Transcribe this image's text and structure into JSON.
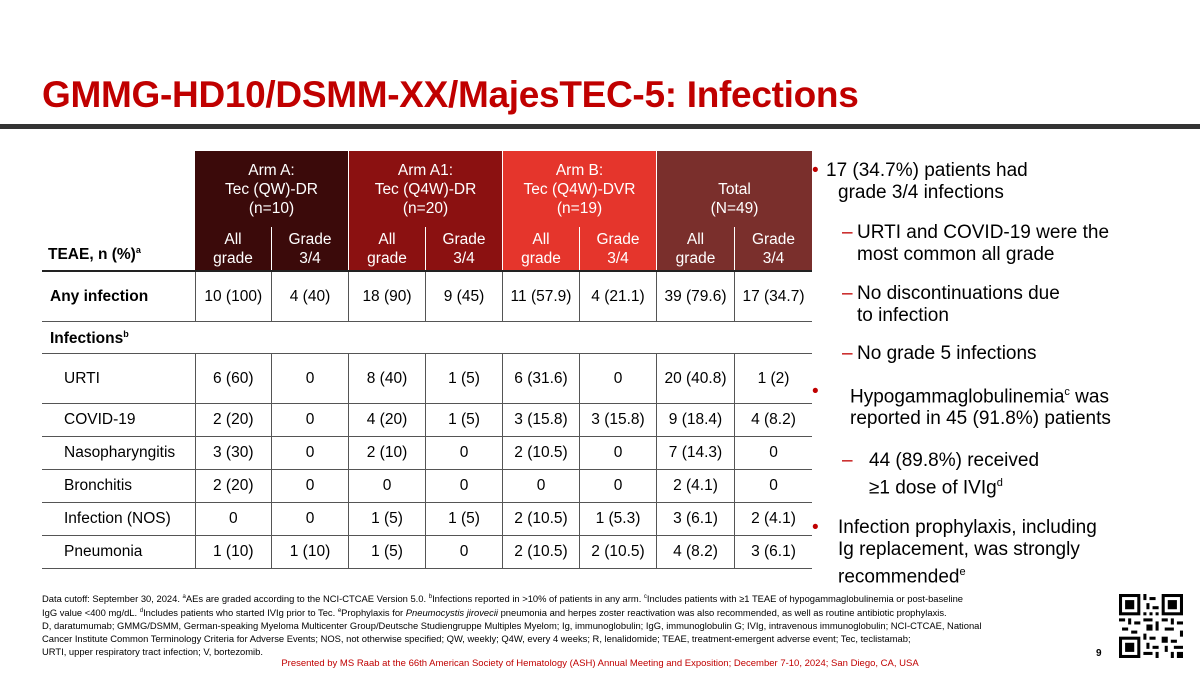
{
  "title": "GMMG-HD10/DSMM-XX/MajesTEC-5: Infections",
  "table": {
    "arms": [
      {
        "lines": [
          "Arm A:",
          "Tec (QW)-DR",
          "(n=10)"
        ]
      },
      {
        "lines": [
          "Arm A1:",
          "Tec (Q4W)-DR",
          "(n=20)"
        ]
      },
      {
        "lines": [
          "Arm B:",
          "Tec (Q4W)-DVR",
          "(n=19)"
        ]
      },
      {
        "lines": [
          "",
          "Total",
          "(N=49)"
        ]
      }
    ],
    "row_header": "TEAE, n (%)",
    "row_header_sup": "a",
    "subcols": [
      [
        "All",
        "grade"
      ],
      [
        "Grade",
        "3/4"
      ]
    ],
    "any_infection": {
      "label": "Any infection",
      "values": [
        "10 (100)",
        "4 (40)",
        "18 (90)",
        "9 (45)",
        "11 (57.9)",
        "4 (21.1)",
        "39 (79.6)",
        "17 (34.7)"
      ]
    },
    "infections_label": "Infections",
    "infections_sup": "b",
    "rows": [
      {
        "label": "URTI",
        "values": [
          "6 (60)",
          "0",
          "8 (40)",
          "1 (5)",
          "6 (31.6)",
          "0",
          "20 (40.8)",
          "1 (2)"
        ]
      },
      {
        "label": "COVID-19",
        "values": [
          "2 (20)",
          "0",
          "4 (20)",
          "1 (5)",
          "3 (15.8)",
          "3 (15.8)",
          "9 (18.4)",
          "4 (8.2)"
        ]
      },
      {
        "label": "Nasopharyngitis",
        "values": [
          "3 (30)",
          "0",
          "2 (10)",
          "0",
          "2 (10.5)",
          "0",
          "7 (14.3)",
          "0"
        ]
      },
      {
        "label": "Bronchitis",
        "values": [
          "2 (20)",
          "0",
          "0",
          "0",
          "0",
          "0",
          "2 (4.1)",
          "0"
        ]
      },
      {
        "label": "Infection (NOS)",
        "values": [
          "0",
          "0",
          "1 (5)",
          "1 (5)",
          "2 (10.5)",
          "1 (5.3)",
          "3 (6.1)",
          "2 (4.1)"
        ]
      },
      {
        "label": "Pneumonia",
        "values": [
          "1 (10)",
          "1 (10)",
          "1 (5)",
          "0",
          "2 (10.5)",
          "2 (10.5)",
          "4 (8.2)",
          "3 (6.1)"
        ]
      }
    ]
  },
  "bullets": {
    "b1": "17 (34.7%) patients had",
    "b1b": "grade 3/4 infections",
    "d1": "URTI and COVID-19 were the",
    "d1b": "most common all grade",
    "d2": "No discontinuations due",
    "d2b": "to infection",
    "d3": "No grade 5 infections",
    "b2": "Hypogammaglobulinemia",
    "b2sup": "c",
    "b2rest": " was",
    "b2b": "reported in 45 (91.8%) patients",
    "d4": "44 (89.8%) received",
    "d4b": "≥1 dose of IVIg",
    "d4sup": "d",
    "b3": "Infection prophylaxis, including",
    "b3b": "Ig replacement, was strongly",
    "b3c": "recommended",
    "b3sup": "e"
  },
  "footnotes": {
    "l1a": "Data cutoff: September 30, 2024. ",
    "l1b": "AEs are graded according to the NCI-CTCAE Version 5.0. ",
    "l1c": "Infections reported in >10% of patients in any arm. ",
    "l1d": "Includes patients with ≥1 TEAE of hypogammaglobulinemia or post-baseline",
    "l2a": "IgG value <400 mg/dL. ",
    "l2b": "Includes patients who started IVIg prior to Tec. ",
    "l2c": "Prophylaxis for ",
    "l2d": "Pneumocystis jirovecii",
    "l2e": " pneumonia and herpes zoster reactivation was also recommended, as well as routine antibiotic prophylaxis.",
    "l3": "D, daratumumab; GMMG/DSMM, German-speaking Myeloma Multicenter Group/Deutsche Studiengruppe Multiples Myelom; Ig, immunoglobulin; IgG, immunoglobulin G; IVIg, intravenous immunoglobulin; NCI-CTCAE, National",
    "l4": "Cancer Institute Common Terminology Criteria for Adverse Events; NOS, not otherwise specified; QW, weekly; Q4W, every 4 weeks; R, lenalidomide; TEAE, treatment-emergent adverse event; Tec, teclistamab;",
    "l5": "URTI, upper respiratory tract infection; V, bortezomib."
  },
  "presented_by": "Presented by MS Raab at the 66th American Society of Hematology (ASH) Annual Meeting and Exposition; December 7-10, 2024; San Diego, CA, USA",
  "page_number": "9",
  "colors": {
    "title": "#c00000",
    "armA": "#3b0a0a",
    "armA1": "#8b1111",
    "armB": "#e5352c",
    "total": "#7a2f2c"
  }
}
